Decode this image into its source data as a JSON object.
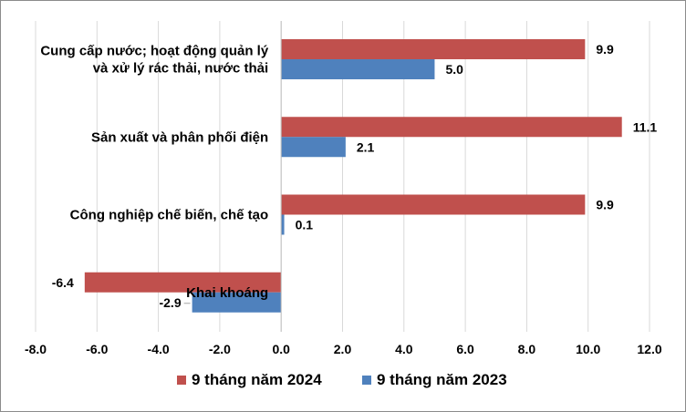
{
  "chart_data": {
    "type": "bar",
    "orientation": "horizontal",
    "title": "",
    "xlabel": "",
    "ylabel": "",
    "categories": [
      [
        "Cung cấp nước; hoạt động quản lý",
        "và xử lý rác thải, nước thải"
      ],
      [
        "Sản xuất và phân phối điện"
      ],
      [
        "Công nghiệp chế biến, chế tạo"
      ],
      [
        "Khai khoáng"
      ]
    ],
    "series": [
      {
        "name": "9 tháng năm 2024",
        "color": "#c0504d",
        "values": [
          9.9,
          11.1,
          9.9,
          -6.4
        ],
        "labels": [
          "9.9",
          "11.1",
          "9.9",
          "-6.4"
        ]
      },
      {
        "name": "9 tháng năm 2023",
        "color": "#4f81bd",
        "values": [
          5.0,
          2.1,
          0.1,
          -2.9
        ],
        "labels": [
          "5.0",
          "2.1",
          "0.1",
          "-2.9"
        ]
      }
    ],
    "xlim": [
      -8,
      12
    ],
    "x_ticks": [
      -8,
      -6,
      -4,
      -2,
      0,
      2,
      4,
      6,
      8,
      10,
      12
    ],
    "x_tick_labels": [
      "-8.0",
      "-6.0",
      "-4.0",
      "-2.0",
      "0.0",
      "2.0",
      "4.0",
      "6.0",
      "8.0",
      "10.0",
      "12.0"
    ],
    "grid": true,
    "legend_position": "bottom"
  }
}
